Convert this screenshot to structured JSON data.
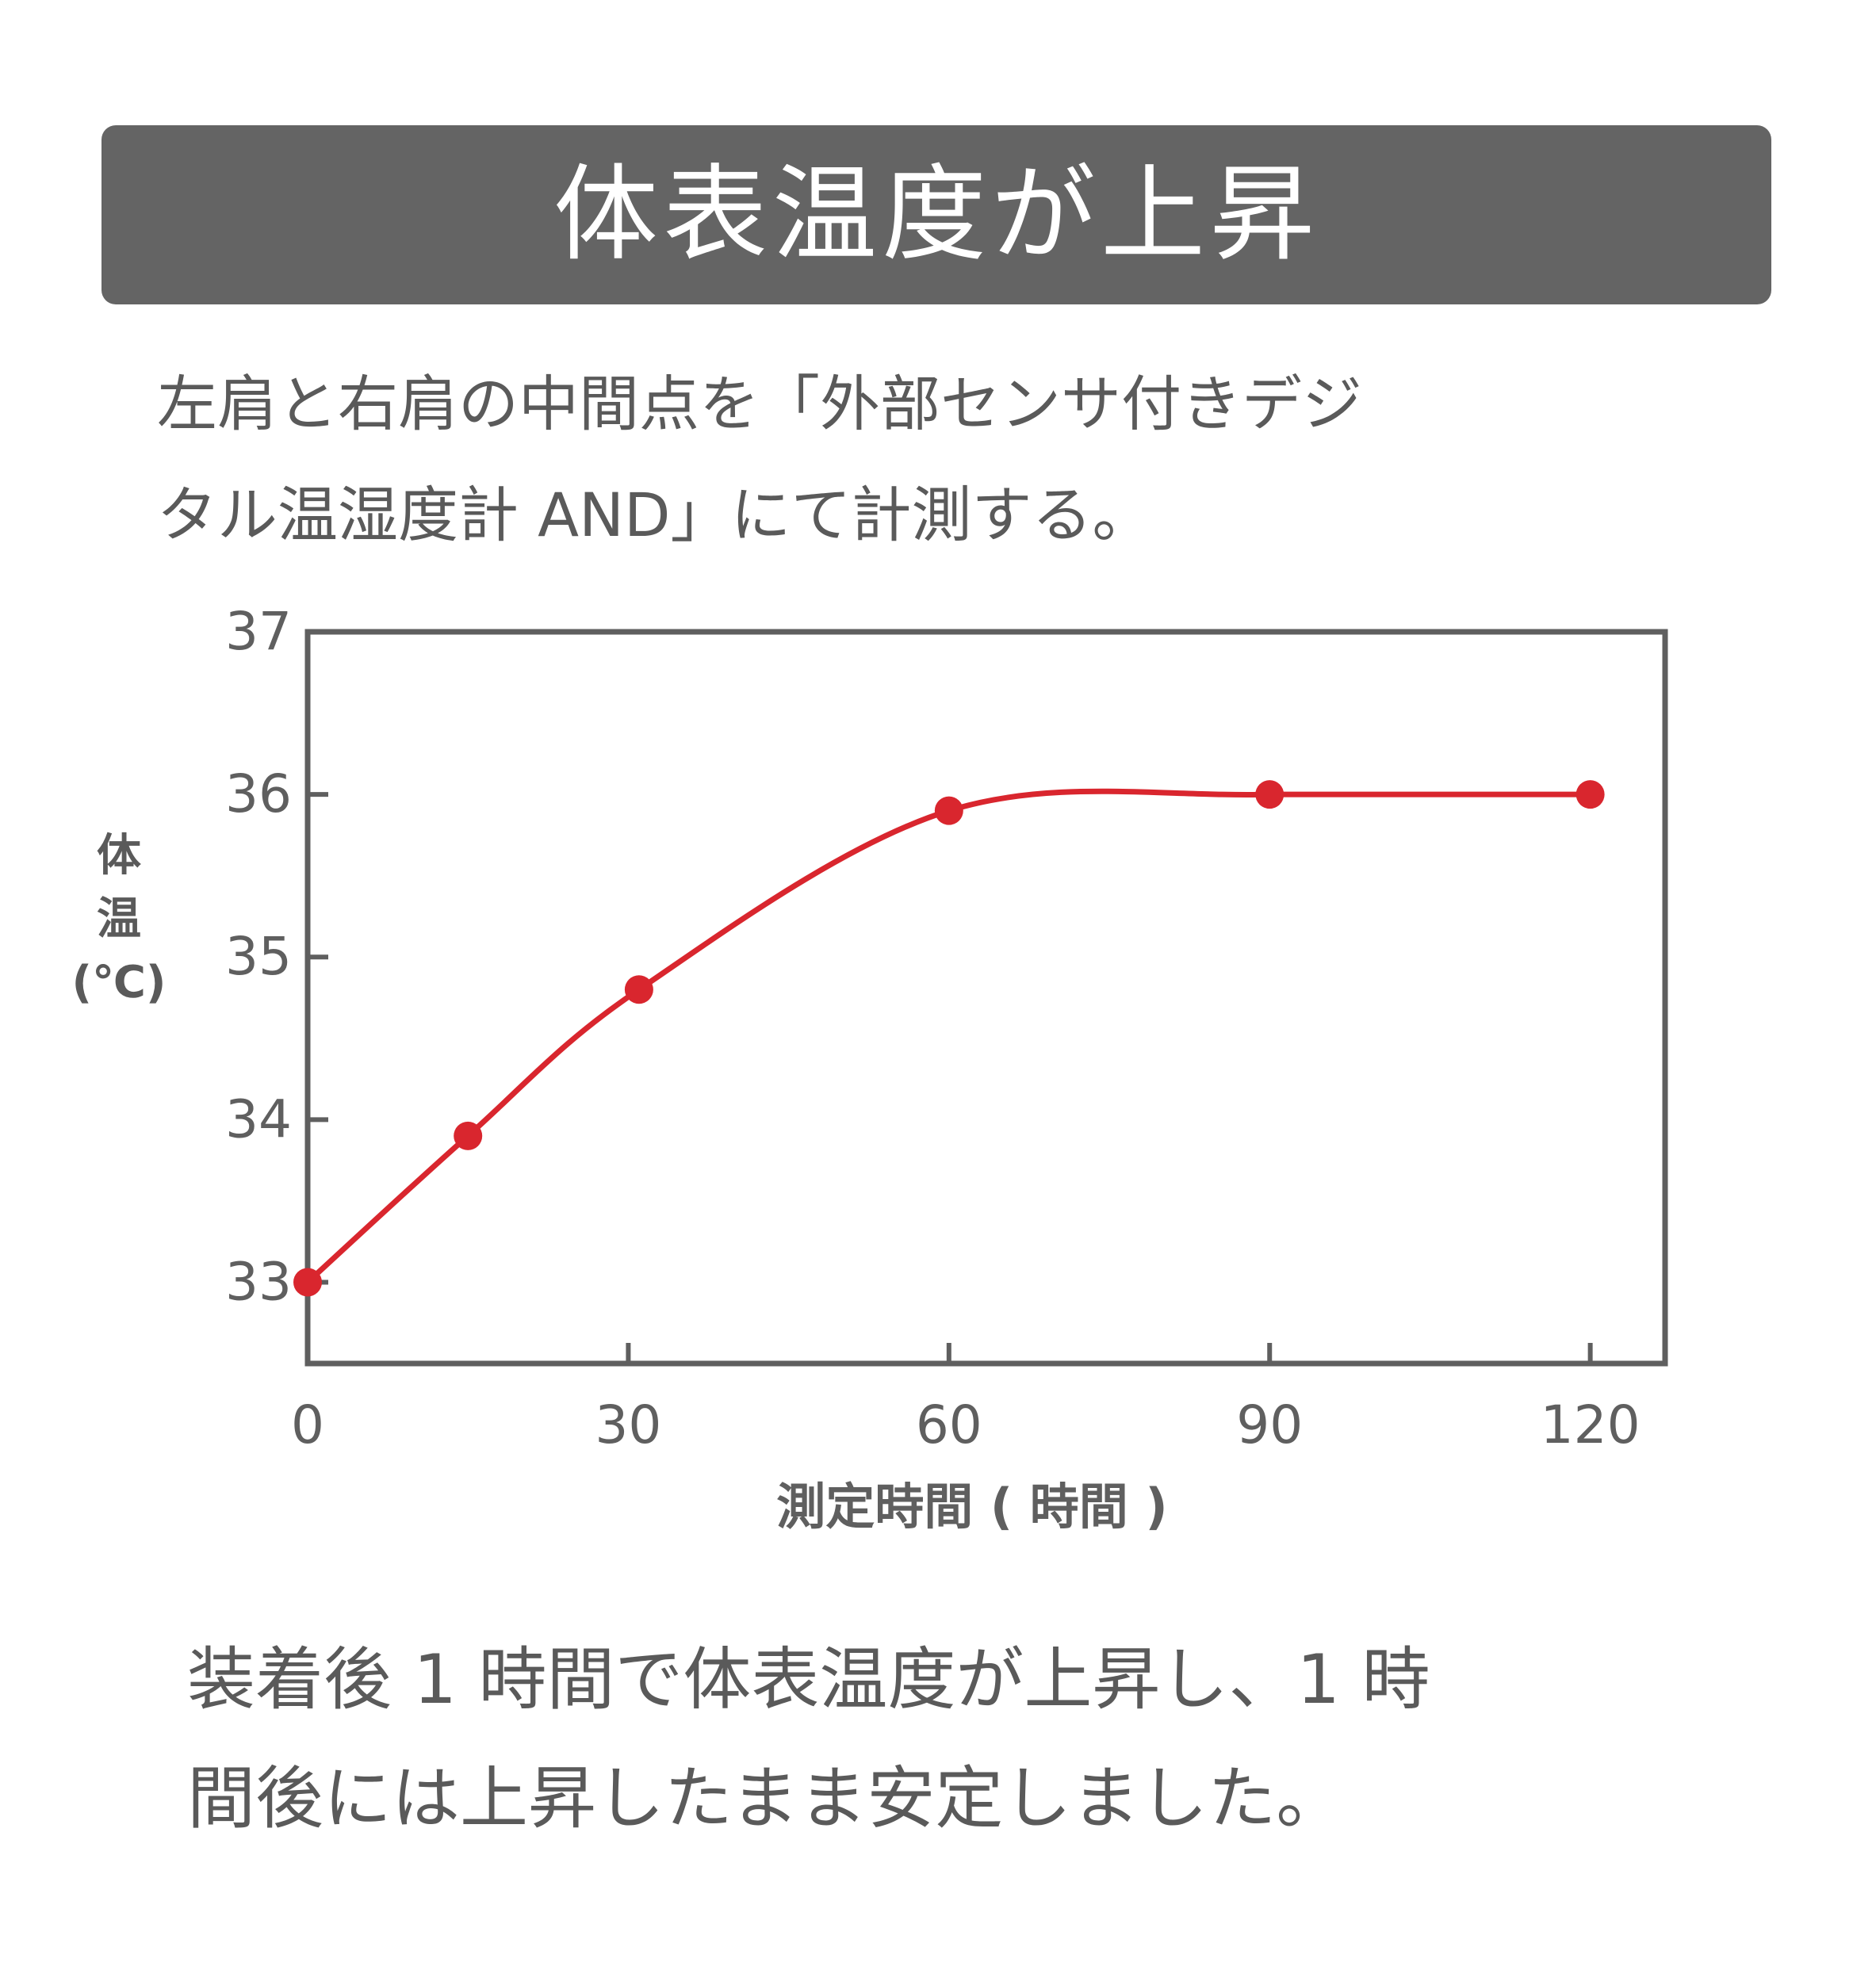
{
  "title": "体表温度が上昇",
  "intro": {
    "line1": "左肩と右肩の中間点を「外部センサ付きデジ",
    "line2": "タル温湿度計 AND」にて計測する。"
  },
  "footer": {
    "line1": "装着後 1 時間で体表温度が上昇し、1 時",
    "line2": "間後には上昇したまま安定しました。"
  },
  "colors": {
    "title_bg": "#646464",
    "series": "#d9262e",
    "axis": "#5f5f5f"
  },
  "chart_data": {
    "type": "line",
    "xlabel": "測定時間 ( 時間 )",
    "ylabel_lines": [
      "体",
      "温",
      "(℃)"
    ],
    "x_ticks": [
      0,
      30,
      60,
      90,
      120
    ],
    "y_ticks": [
      33,
      34,
      35,
      36,
      37
    ],
    "xlim": [
      0,
      127
    ],
    "ylim": [
      32.5,
      37
    ],
    "grid": false,
    "series": [
      {
        "x": [
          0,
          15,
          31,
          60,
          90,
          120
        ],
        "y": [
          33.0,
          33.9,
          34.8,
          35.9,
          36.0,
          36.0
        ]
      }
    ]
  }
}
